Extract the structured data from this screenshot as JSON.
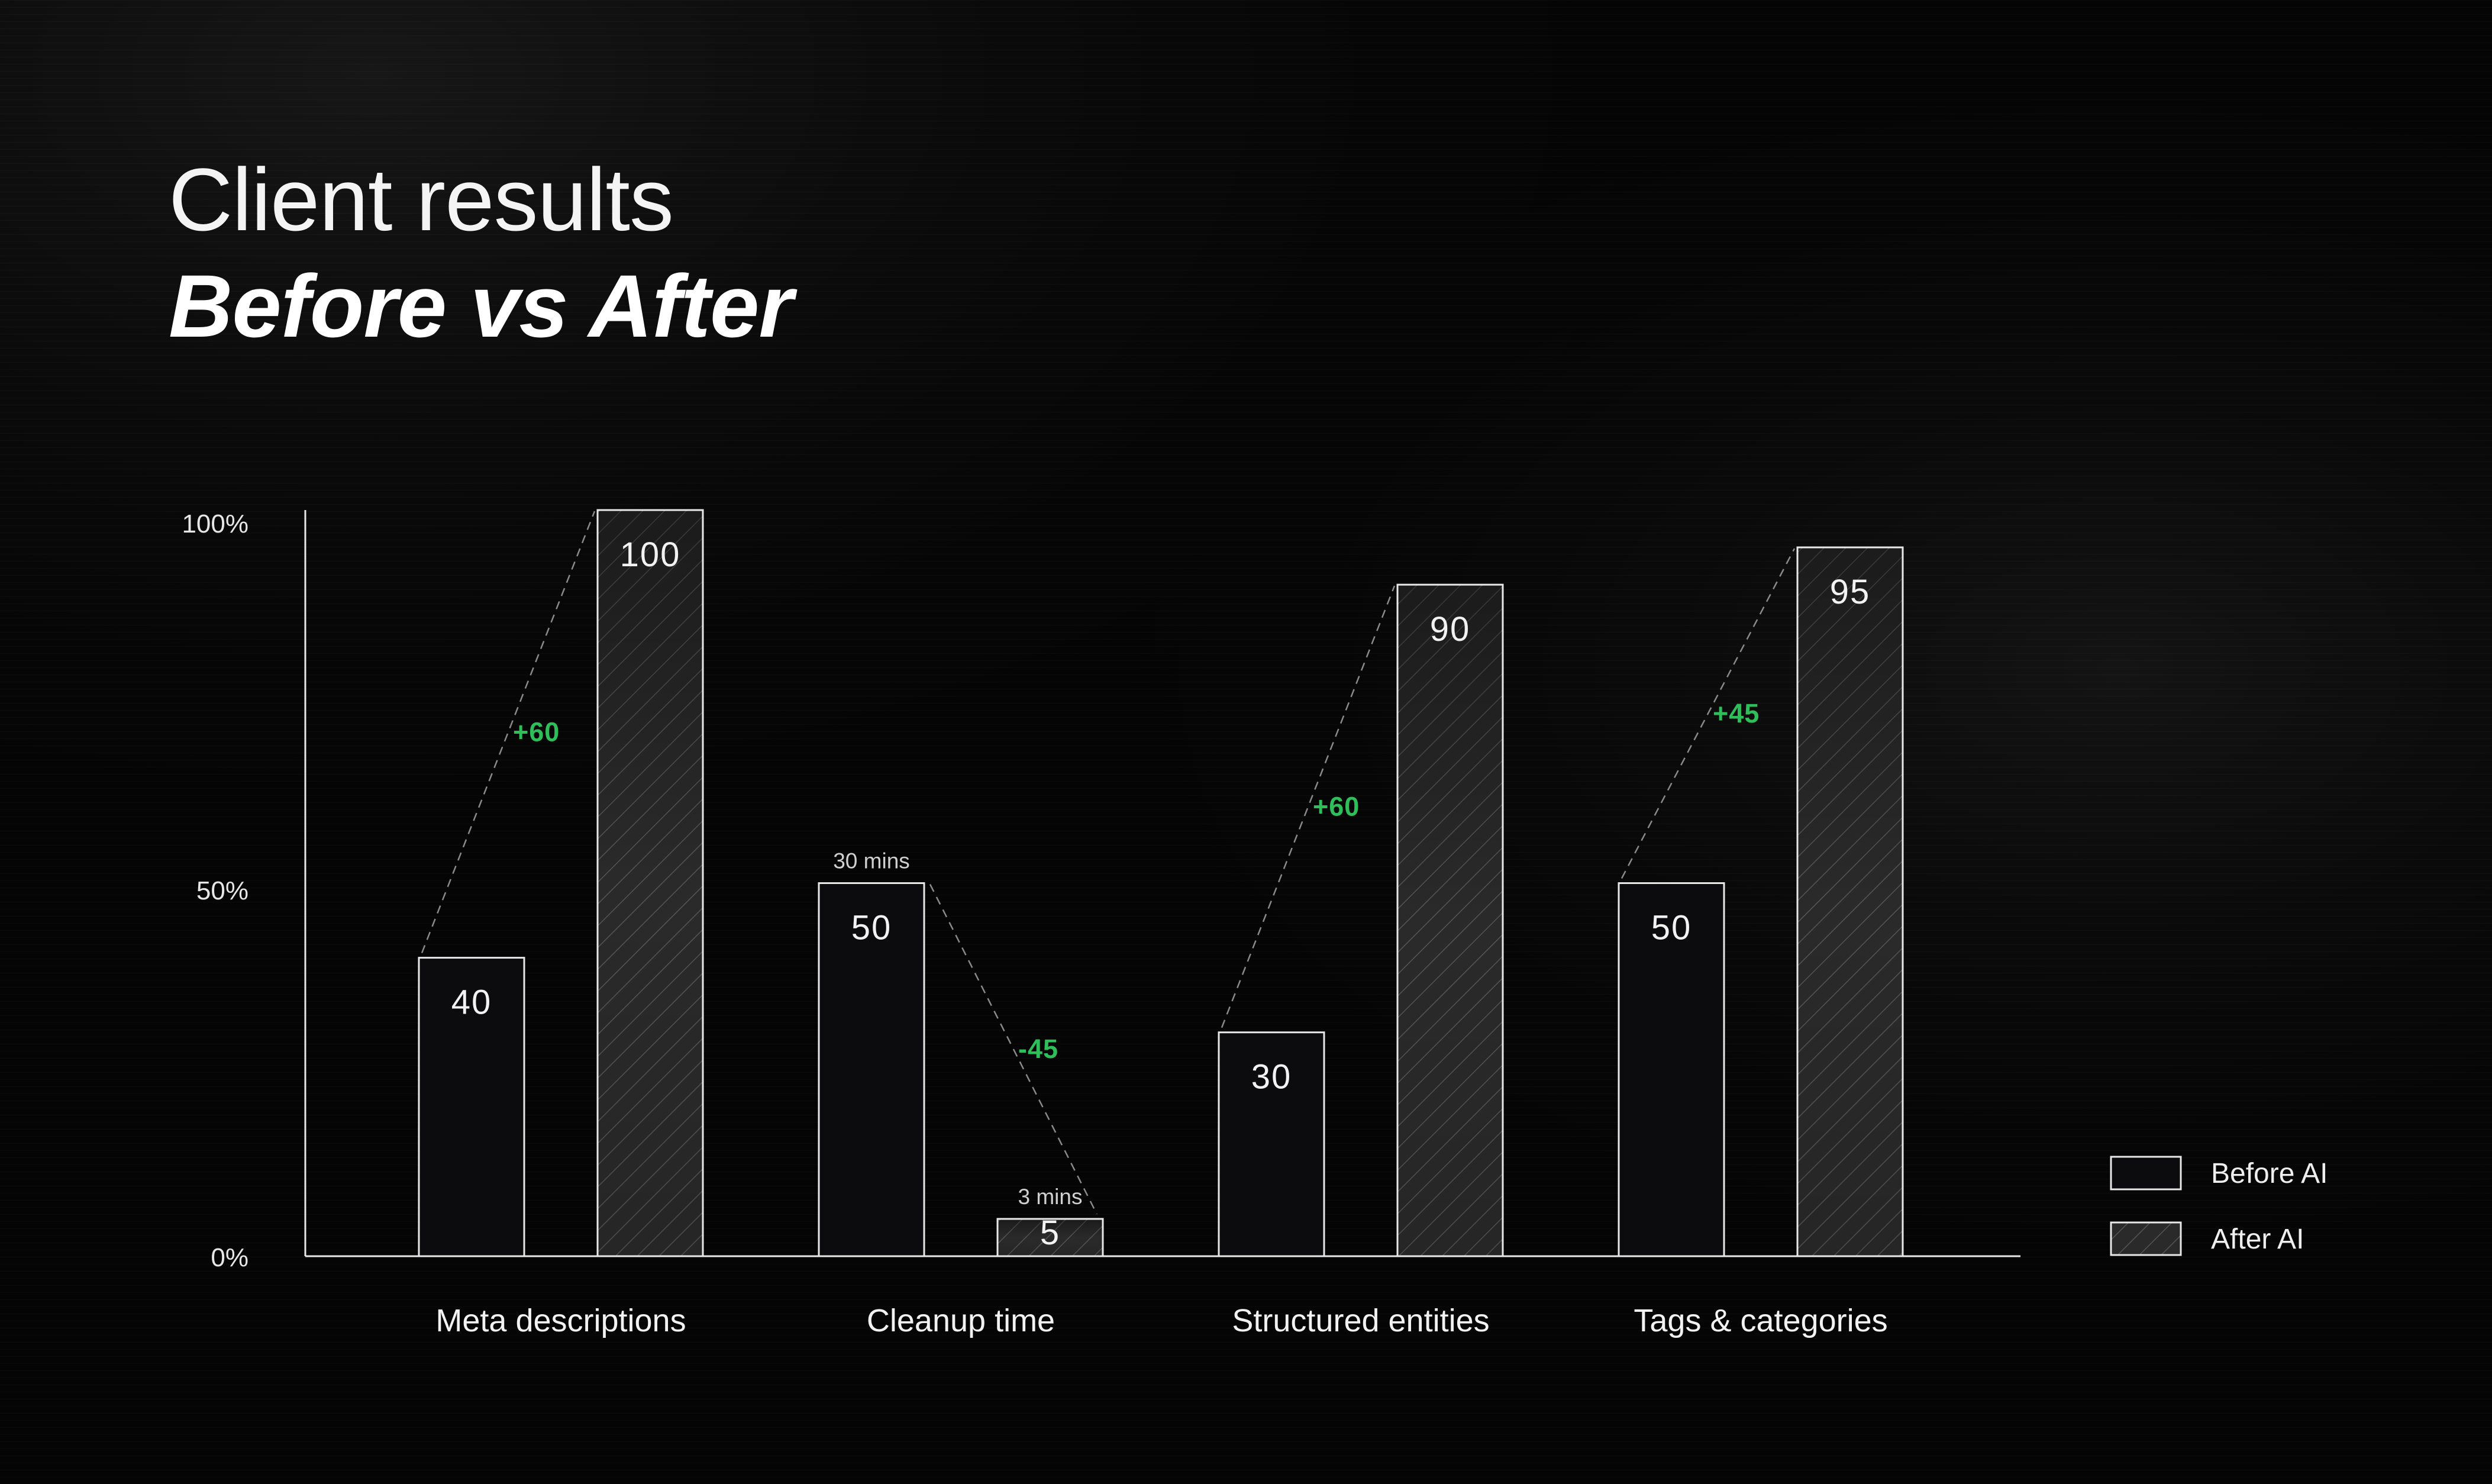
{
  "title": "Client results",
  "subtitle": "Before vs After",
  "chart_data": {
    "type": "bar",
    "categories": [
      "Meta descriptions",
      "Cleanup time",
      "Structured entities",
      "Tags & categories"
    ],
    "series": [
      {
        "name": "Before AI",
        "values": [
          40,
          50,
          30,
          50
        ]
      },
      {
        "name": "After AI",
        "values": [
          100,
          5,
          90,
          95
        ]
      }
    ],
    "value_labels": {
      "before": [
        "40",
        "50",
        "30",
        "50"
      ],
      "after": [
        "100",
        "5",
        "90",
        "95"
      ]
    },
    "deltas": [
      "+60",
      "-45",
      "+60",
      "+45"
    ],
    "notes": [
      {
        "category": "Cleanup time",
        "series": "Before AI",
        "text": "30 mins"
      },
      {
        "category": "Cleanup time",
        "series": "After AI",
        "text": "3 mins"
      }
    ],
    "y_ticks": [
      "0%",
      "50%",
      "100%"
    ],
    "ylim": [
      0,
      100
    ],
    "legend": {
      "placement": "bottom-right"
    },
    "grid": false,
    "colors": {
      "before_fill": "#0c0c0e",
      "after_fill": "#2a2a2a",
      "outline": "#e8e8e8",
      "delta": "#2fbf5a"
    }
  }
}
